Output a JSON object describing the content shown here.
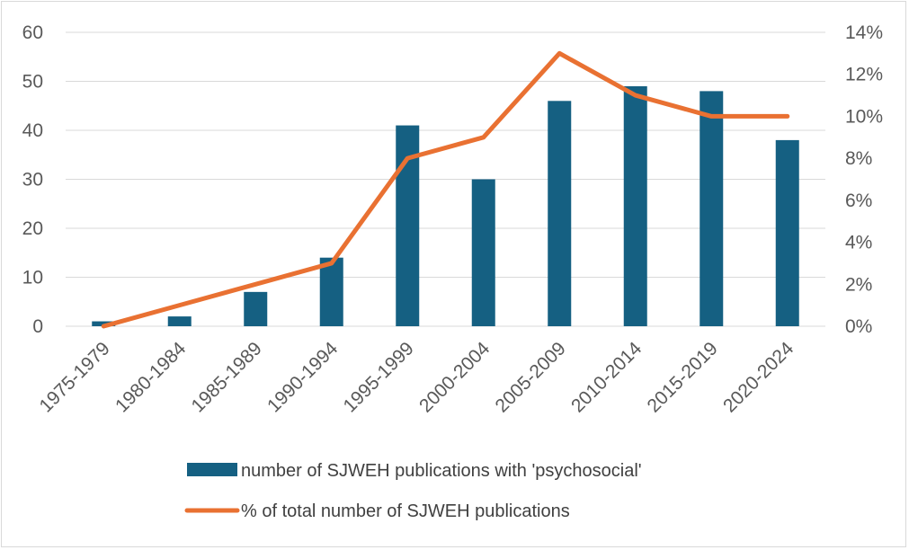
{
  "chart_data": {
    "type": "bar+line",
    "categories": [
      "1975-1979",
      "1980-1984",
      "1985-1989",
      "1990-1994",
      "1995-1999",
      "2000-2004",
      "2005-2009",
      "2010-2014",
      "2015-2019",
      "2020-2024"
    ],
    "series": [
      {
        "name": "number of SJWEH publications with 'psychosocial'",
        "kind": "bar",
        "axis": "left",
        "color": "#156082",
        "values": [
          1,
          2,
          7,
          14,
          41,
          30,
          46,
          49,
          48,
          38
        ]
      },
      {
        "name": "% of total number of SJWEH publications",
        "kind": "line",
        "axis": "right",
        "color": "#E97132",
        "values": [
          0,
          1,
          2,
          3,
          8,
          9,
          13,
          11,
          10,
          10
        ]
      }
    ],
    "y_left": {
      "min": 0,
      "max": 60,
      "ticks": [
        "0",
        "10",
        "20",
        "30",
        "40",
        "50",
        "60"
      ]
    },
    "y_right": {
      "min": 0,
      "max": 14,
      "ticks": [
        "0%",
        "2%",
        "4%",
        "6%",
        "8%",
        "10%",
        "12%",
        "14%"
      ]
    },
    "grid": true,
    "legend": "bottom"
  }
}
